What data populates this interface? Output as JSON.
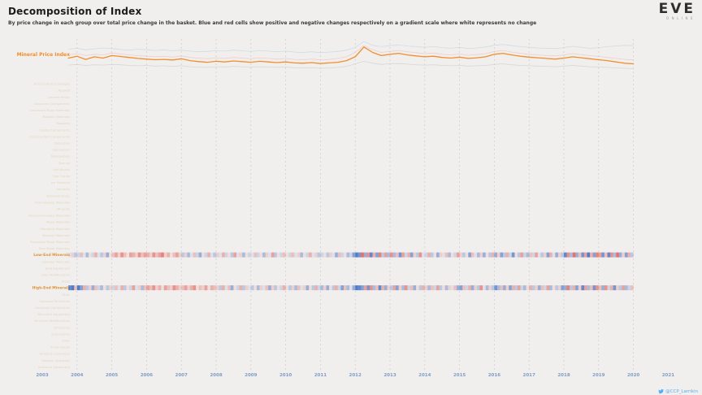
{
  "header": {
    "title": "Decomposition of Index",
    "subtitle": "By price change in each group over total price change in the basket. Blue and red cells show positive and negative changes respectively on a gradient scale where white represents no change"
  },
  "logo": {
    "brand": "EVE",
    "sub": "ONLINE"
  },
  "footer": {
    "handle": "@CCP_Larrikin"
  },
  "colors": {
    "background": "#f0efee",
    "accent_orange": "#f28e2b",
    "heat_positive_blue": "#406ec4",
    "heat_negative_red": "#e25449",
    "axis_label_blue": "#7f9dc4",
    "gridline": "#d2d0cd",
    "row_label_dim": "#ddb980",
    "row_label_emphasis": "#e09132"
  },
  "axis": {
    "years": [
      2003,
      2004,
      2005,
      2006,
      2007,
      2008,
      2009,
      2010,
      2011,
      2012,
      2013,
      2014,
      2015,
      2016,
      2017,
      2018,
      2019,
      2020,
      2021
    ]
  },
  "chart_data": [
    {
      "type": "line",
      "x_start": 2003.75,
      "x_step": 0.25,
      "xlim": [
        2003,
        2021
      ],
      "ylim": [
        40,
        160
      ],
      "grid": "vertical-dashed-yearly",
      "legend_position": "left-inline",
      "series": [
        {
          "label": "Mineral Price Index",
          "color": "#f28e2b",
          "emphasis": true,
          "values": [
            100,
            106,
            96,
            104,
            100,
            108,
            105,
            102,
            99,
            97,
            95,
            96,
            94,
            98,
            92,
            89,
            87,
            90,
            88,
            91,
            89,
            87,
            90,
            88,
            86,
            88,
            85,
            84,
            86,
            83,
            85,
            87,
            92,
            104,
            135,
            118,
            108,
            112,
            115,
            110,
            107,
            104,
            106,
            102,
            100,
            103,
            99,
            101,
            104,
            112,
            115,
            110,
            106,
            103,
            101,
            99,
            97,
            100,
            104,
            101,
            98,
            95,
            92,
            88,
            84,
            82
          ]
        },
        {
          "label": "",
          "color": "#b9cfe0",
          "emphasis": false,
          "values": [
            128,
            131,
            126,
            129,
            132,
            130,
            127,
            125,
            128,
            126,
            124,
            126,
            123,
            125,
            122,
            120,
            121,
            124,
            122,
            125,
            123,
            121,
            124,
            122,
            120,
            122,
            119,
            118,
            120,
            117,
            119,
            121,
            125,
            134,
            152,
            140,
            136,
            139,
            141,
            138,
            136,
            134,
            136,
            133,
            131,
            134,
            130,
            132,
            135,
            140,
            143,
            139,
            136,
            134,
            132,
            131,
            130,
            133,
            137,
            134,
            131,
            133,
            136,
            138,
            140,
            139
          ]
        },
        {
          "label": "",
          "color": "#eeb8ba",
          "emphasis": false,
          "values": [
            110,
            114,
            108,
            112,
            110,
            116,
            113,
            110,
            108,
            106,
            104,
            106,
            103,
            107,
            102,
            100,
            98,
            101,
            99,
            102,
            100,
            98,
            101,
            99,
            97,
            99,
            96,
            95,
            97,
            94,
            96,
            99,
            104,
            118,
            140,
            126,
            118,
            121,
            124,
            120,
            117,
            114,
            116,
            112,
            110,
            113,
            109,
            111,
            114,
            121,
            124,
            119,
            115,
            112,
            110,
            108,
            107,
            110,
            114,
            111,
            108,
            105,
            102,
            99,
            96,
            94
          ]
        },
        {
          "label": "",
          "color": "#c9c7c4",
          "emphasis": false,
          "values": [
            78,
            80,
            77,
            79,
            78,
            80,
            79,
            77,
            76,
            77,
            75,
            76,
            74,
            76,
            73,
            72,
            71,
            73,
            72,
            74,
            73,
            72,
            73,
            72,
            71,
            72,
            70,
            69,
            70,
            68,
            69,
            71,
            74,
            82,
            90,
            84,
            80,
            82,
            83,
            81,
            79,
            78,
            79,
            77,
            76,
            77,
            75,
            76,
            77,
            80,
            82,
            79,
            77,
            76,
            75,
            74,
            73,
            75,
            77,
            75,
            73,
            72,
            71,
            69,
            68,
            67
          ]
        }
      ]
    },
    {
      "type": "heatmap",
      "x_start": 2003.75,
      "x_step": 0.08333,
      "positive_color": "#406ec4",
      "negative_color": "#e25449",
      "rows": [
        {
          "label": "Ammunition & Charges"
        },
        {
          "label": "Apparel"
        },
        {
          "label": "Ancient Relics"
        },
        {
          "label": "Advanced Components"
        },
        {
          "label": "Advanced Moon Materials"
        },
        {
          "label": "Booster Materials"
        },
        {
          "label": "Boosters"
        },
        {
          "label": "Capital Components"
        },
        {
          "label": "Construction Components"
        },
        {
          "label": "Datacores"
        },
        {
          "label": "Decryptors"
        },
        {
          "label": "Deployables"
        },
        {
          "label": "Drones"
        },
        {
          "label": "Fuel Blocks"
        },
        {
          "label": "Gas Clouds"
        },
        {
          "label": "Ice Products"
        },
        {
          "label": "Implants"
        },
        {
          "label": "Industrial Ships"
        },
        {
          "label": "Intermediate Materials"
        },
        {
          "label": "Minerals"
        },
        {
          "label": "Molecular-Forged Materials"
        },
        {
          "label": "Moon Materials"
        },
        {
          "label": "Planetary Materials"
        },
        {
          "label": "Polymer Materials"
        },
        {
          "label": "Processed Moon Materials"
        },
        {
          "label": "Raw Moon Materials"
        },
        {
          "label": "Low-End Minerals",
          "emphasis": true,
          "values": [
            0.1,
            -0.2,
            0.3,
            0.2,
            -0.3,
            0.1,
            0.4,
            -0.1,
            0.2,
            -0.4,
            0.1,
            0.3,
            -0.2,
            0.5,
            -0.1,
            -0.3,
            -0.5,
            -0.2,
            -0.6,
            -0.3,
            -0.1,
            -0.5,
            -0.4,
            -0.2,
            -0.6,
            -0.3,
            -0.5,
            -0.4,
            -0.2,
            -0.6,
            -0.3,
            -0.5,
            -0.7,
            -0.2,
            -0.4,
            -0.1,
            -0.3,
            -0.5,
            -0.2,
            0.3,
            -0.2,
            0.4,
            0.1,
            -0.3,
            0.2,
            0.5,
            -0.1,
            0.2,
            -0.4,
            0.1,
            0.3,
            -0.2,
            0.1,
            -0.4,
            0.2,
            -0.1,
            0.3,
            -0.5,
            0.1,
            -0.2,
            0.4,
            -0.1,
            0.2,
            0.1,
            -0.3,
            0.2,
            -0.1,
            0.4,
            -0.2,
            0.1,
            -0.5,
            0.3,
            -0.1,
            0.2,
            -0.3,
            -0.1,
            0.2,
            -0.3,
            0.1,
            -0.2,
            0.4,
            -0.1,
            0.2,
            -0.4,
            0.1,
            -0.2,
            0.3,
            0.2,
            -0.1,
            0.3,
            -0.2,
            0.1,
            0.5,
            -0.3,
            0.2,
            -0.1,
            0.4,
            0.2,
            0.6,
            0.9,
            0.7,
            -0.8,
            0.5,
            -0.6,
            0.8,
            -0.4,
            0.6,
            -0.7,
            0.3,
            -0.5,
            0.4,
            -0.6,
            0.4,
            -0.3,
            0.7,
            -0.5,
            0.2,
            -0.4,
            0.6,
            -0.2,
            0.3,
            -0.6,
            0.1,
            0.2,
            -0.4,
            0.3,
            -0.1,
            0.5,
            -0.2,
            0.1,
            -0.3,
            0.4,
            -0.1,
            0.2,
            -0.5,
            -0.2,
            0.3,
            -0.1,
            0.6,
            -0.3,
            0.1,
            0.4,
            -0.2,
            0.5,
            -0.1,
            0.3,
            -0.4,
            0.5,
            -0.2,
            0.6,
            0.3,
            -0.4,
            0.2,
            0.7,
            -0.1,
            0.3,
            -0.5,
            0.2,
            0.4,
            -0.3,
            0.2,
            -0.5,
            0.1,
            0.3,
            -0.2,
            0.6,
            -0.4,
            0.1,
            0.5,
            -0.2,
            0.3,
            0.8,
            -0.6,
            0.4,
            -0.8,
            0.5,
            -0.3,
            0.7,
            -0.5,
            0.9,
            -0.4,
            0.6,
            -0.7,
            -0.5,
            0.7,
            -0.3,
            0.8,
            -0.6,
            0.4,
            -0.8,
            0.5,
            -0.2,
            0.6,
            -0.4,
            0.3
          ]
        },
        {
          "label": "Salvage Materials"
        },
        {
          "label": "Ship Equipment"
        },
        {
          "label": "Ship Modifications"
        },
        {
          "label": "Ships"
        },
        {
          "label": "High-End Minerals",
          "emphasis": true,
          "values": [
            0.8,
            0.9,
            -0.3,
            0.9,
            0.6,
            -0.4,
            0.3,
            -0.2,
            0.5,
            -0.3,
            0.2,
            0.4,
            -0.1,
            0.3,
            -0.2,
            0.2,
            -0.3,
            0.1,
            -0.4,
            0.3,
            -0.1,
            0.2,
            -0.5,
            0.1,
            -0.2,
            0.4,
            -0.3,
            -0.5,
            -0.3,
            -0.6,
            -0.2,
            -0.4,
            -0.1,
            -0.5,
            -0.3,
            -0.2,
            -0.6,
            -0.4,
            -0.2,
            -0.3,
            -0.5,
            -0.2,
            -0.4,
            -0.6,
            -0.1,
            -0.3,
            -0.2,
            -0.5,
            -0.1,
            -0.4,
            -0.3,
            -0.2,
            0.3,
            -0.4,
            0.1,
            -0.3,
            0.5,
            -0.1,
            0.2,
            -0.4,
            0.3,
            -0.2,
            0.1,
            0.3,
            -0.1,
            0.4,
            -0.2,
            0.1,
            -0.3,
            0.5,
            -0.2,
            0.3,
            -0.1,
            0.2,
            -0.4,
            -0.1,
            0.3,
            -0.2,
            0.4,
            -0.3,
            0.1,
            -0.2,
            0.5,
            -0.1,
            0.3,
            -0.4,
            0.2,
            0.4,
            -0.2,
            0.5,
            -0.1,
            0.3,
            -0.4,
            0.2,
            0.6,
            -0.3,
            0.4,
            0.1,
            0.5,
            0.9,
            0.8,
            0.6,
            -0.5,
            0.7,
            -0.6,
            0.4,
            -0.3,
            0.8,
            -0.4,
            0.5,
            -0.2,
            0.3,
            -0.5,
            0.6,
            -0.2,
            0.4,
            -0.6,
            0.2,
            -0.3,
            0.5,
            -0.1,
            0.3,
            -0.4,
            -0.2,
            0.4,
            -0.3,
            0.2,
            -0.5,
            0.3,
            -0.1,
            0.4,
            -0.2,
            0.1,
            -0.3,
            0.5,
            0.6,
            -0.3,
            0.2,
            -0.4,
            0.5,
            -0.2,
            0.3,
            -0.6,
            0.1,
            0.4,
            -0.2,
            0.3,
            0.7,
            0.4,
            -0.3,
            0.5,
            -0.2,
            0.6,
            -0.4,
            0.3,
            -0.5,
            0.2,
            0.4,
            -0.1,
            -0.4,
            0.3,
            -0.2,
            0.5,
            -0.3,
            0.2,
            -0.5,
            0.4,
            -0.1,
            0.3,
            -0.2,
            0.6,
            0.5,
            -0.7,
            0.3,
            -0.4,
            0.6,
            -0.2,
            0.8,
            -0.5,
            0.4,
            -0.3,
            0.7,
            -0.6,
            -0.3,
            0.5,
            -0.6,
            0.2,
            -0.4,
            0.7,
            -0.2,
            0.3,
            -0.5,
            0.4,
            0.2,
            -0.3
          ]
        },
        {
          "label": "Skills"
        },
        {
          "label": "Starbase Structures"
        },
        {
          "label": "Structure Components"
        },
        {
          "label": "Structure Equipment"
        },
        {
          "label": "Structure Modifications"
        },
        {
          "label": "Structures"
        },
        {
          "label": "Subsystems"
        },
        {
          "label": "Tools"
        },
        {
          "label": "Trade Goods"
        },
        {
          "label": "Turrets & Launchers"
        },
        {
          "label": "Weapon Upgrades"
        },
        {
          "label": "Research Equipment"
        }
      ]
    }
  ]
}
